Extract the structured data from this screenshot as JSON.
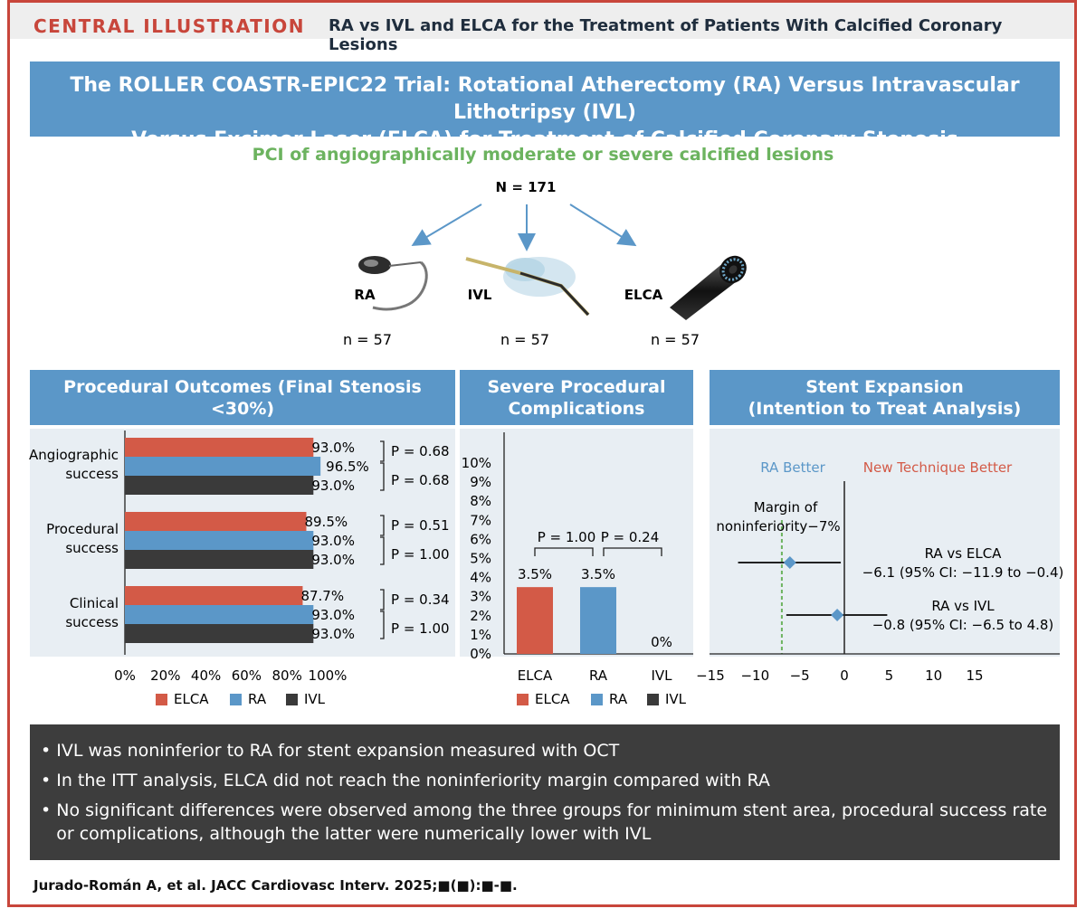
{
  "header": {
    "label": "CENTRAL ILLUSTRATION",
    "title": "RA vs IVL and ELCA for the Treatment of Patients With Calcified Coronary Lesions"
  },
  "trial_title": {
    "line1": "The ROLLER COASTR-EPIC22 Trial: Rotational Atherectomy (RA) Versus Intravascular Lithotripsy (IVL)",
    "line2": "Versus Excimer Laser (ELCA) for Treatment of Calcified Coronary Stenosis"
  },
  "population": {
    "subtitle": "PCI of angiographically moderate or severe calcified lesions",
    "n_total": "N = 171",
    "arms": [
      {
        "label": "RA",
        "n": "n = 57"
      },
      {
        "label": "IVL",
        "n": "n = 57"
      },
      {
        "label": "ELCA",
        "n": "n = 57"
      }
    ]
  },
  "colors": {
    "ELCA": "#d35a47",
    "RA": "#5b97c8",
    "IVL": "#3a3a3a",
    "header_blue": "#5b97c8",
    "accent_red": "#c8463b",
    "green": "#6cb35f"
  },
  "panels": {
    "outcomes_title": "Procedural Outcomes (Final Stenosis <30%)",
    "complications_title_1": "Severe Procedural",
    "complications_title_2": "Complications",
    "stent_title_1": "Stent Expansion",
    "stent_title_2": "(Intention to Treat Analysis)"
  },
  "chart_data": [
    {
      "type": "bar",
      "title": "Procedural Outcomes (Final Stenosis <30%)",
      "orientation": "horizontal",
      "categories": [
        "Angiographic success",
        "Procedural success",
        "Clinical success"
      ],
      "category_lines": [
        [
          "Angiographic",
          "success"
        ],
        [
          "Procedural",
          "success"
        ],
        [
          "Clinical",
          "success"
        ]
      ],
      "series": [
        {
          "name": "ELCA",
          "values": [
            93.0,
            89.5,
            87.7
          ],
          "labels": [
            "93.0%",
            "89.5%",
            "87.7%"
          ]
        },
        {
          "name": "RA",
          "values": [
            96.5,
            93.0,
            93.0
          ],
          "labels": [
            "96.5%",
            "93.0%",
            "93.0%"
          ]
        },
        {
          "name": "IVL",
          "values": [
            93.0,
            93.0,
            93.0
          ],
          "labels": [
            "93.0%",
            "93.0%",
            "93.0%"
          ]
        }
      ],
      "p_values": [
        [
          "P = 0.68",
          "P = 0.68"
        ],
        [
          "P = 0.51",
          "P = 1.00"
        ],
        [
          "P = 0.34",
          "P = 1.00"
        ]
      ],
      "xlim": [
        0,
        100
      ],
      "xticks": [
        "0%",
        "20%",
        "40%",
        "60%",
        "80%",
        "100%"
      ],
      "legend": [
        "ELCA",
        "RA",
        "IVL"
      ]
    },
    {
      "type": "bar",
      "title": "Severe Procedural Complications",
      "categories": [
        "ELCA",
        "RA",
        "IVL"
      ],
      "values": [
        3.5,
        3.5,
        0
      ],
      "labels": [
        "3.5%",
        "3.5%",
        "0%"
      ],
      "ylim": [
        0,
        10
      ],
      "yticks": [
        "0%",
        "1%",
        "2%",
        "3%",
        "4%",
        "5%",
        "6%",
        "7%",
        "8%",
        "9%",
        "10%"
      ],
      "p_values": [
        "P = 1.00",
        "P = 0.24"
      ],
      "legend": [
        "ELCA",
        "RA",
        "IVL"
      ]
    },
    {
      "type": "scatter",
      "title": "Stent Expansion (Intention to Treat Analysis)",
      "left_label": "RA Better",
      "right_label": "New Technique Better",
      "margin_label_1": "Margin of",
      "margin_label_2": "noninferiority−7%",
      "margin": -7,
      "xlim": [
        -15,
        15
      ],
      "xticks": [
        "−15",
        "−10",
        "−5",
        "0",
        "5",
        "10",
        "15"
      ],
      "xtick_values": [
        -15,
        -10,
        -5,
        0,
        5,
        10,
        15
      ],
      "comparisons": [
        {
          "name": "RA vs ELCA",
          "estimate": -6.1,
          "ci": [
            -11.9,
            -0.4
          ],
          "text": "−6.1 (95% CI: −11.9 to −0.4)"
        },
        {
          "name": "RA vs IVL",
          "estimate": -0.8,
          "ci": [
            -6.5,
            4.8
          ],
          "text": "−0.8 (95% CI: −6.5 to 4.8)"
        }
      ]
    }
  ],
  "findings": [
    "IVL was noninferior to RA for stent expansion measured with OCT",
    "In the ITT analysis, ELCA did not reach the noninferiority margin compared with RA",
    "No significant differences were observed among the three groups for minimum stent area, procedural success rate or complications, although the latter were numerically lower with IVL"
  ],
  "citation": "Jurado-Román A, et al. JACC Cardiovasc Interv. 2025;■(■):■-■."
}
